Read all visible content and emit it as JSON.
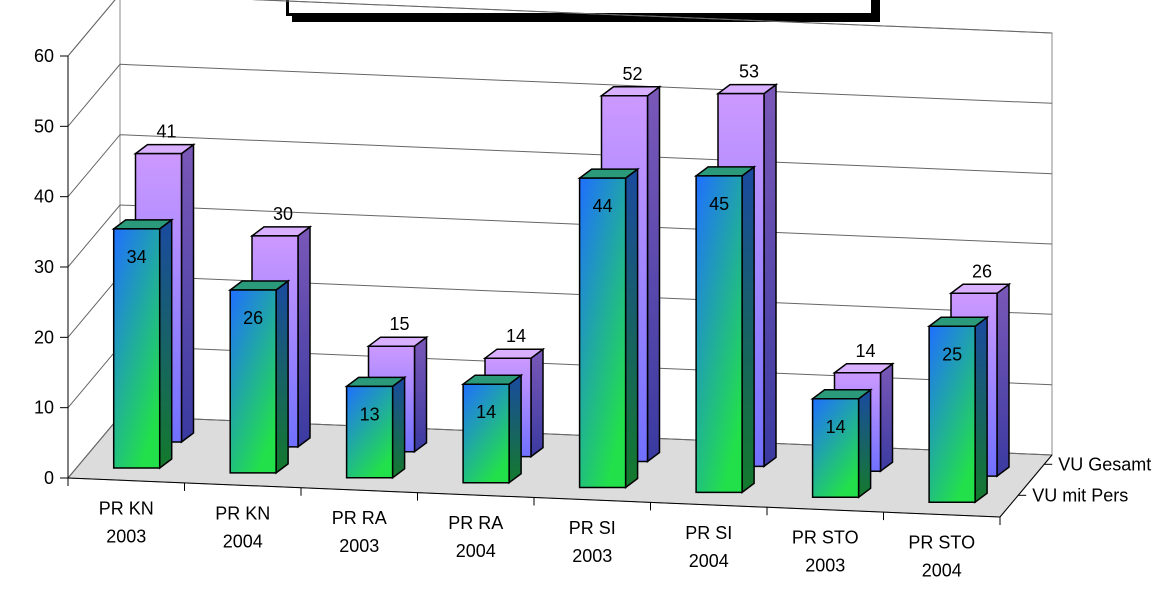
{
  "chart_data": {
    "type": "bar",
    "title": "",
    "categories": [
      [
        "PR KN",
        "2003"
      ],
      [
        "PR KN",
        "2004"
      ],
      [
        "PR RA",
        "2003"
      ],
      [
        "PR RA",
        "2004"
      ],
      [
        "PR SI",
        "2003"
      ],
      [
        "PR SI",
        "2004"
      ],
      [
        "PR STO",
        "2003"
      ],
      [
        "PR STO",
        "2004"
      ]
    ],
    "series": [
      {
        "name": "VU mit Pers",
        "values": [
          34,
          26,
          13,
          14,
          44,
          45,
          14,
          25
        ]
      },
      {
        "name": "VU Gesamt",
        "values": [
          41,
          30,
          15,
          14,
          52,
          53,
          14,
          26
        ]
      }
    ],
    "y_ticks": [
      "0",
      "10",
      "20",
      "30",
      "40",
      "50",
      "60"
    ],
    "ylim": [
      0,
      60
    ],
    "grid": true,
    "legend": "right (depth axis labels)",
    "colors": {
      "front_top": "#1f6fff",
      "front_bottom": "#22e04a",
      "back_top": "#cc99ff",
      "back_bottom": "#6a6aff",
      "floor": "#dcdcdc"
    }
  }
}
